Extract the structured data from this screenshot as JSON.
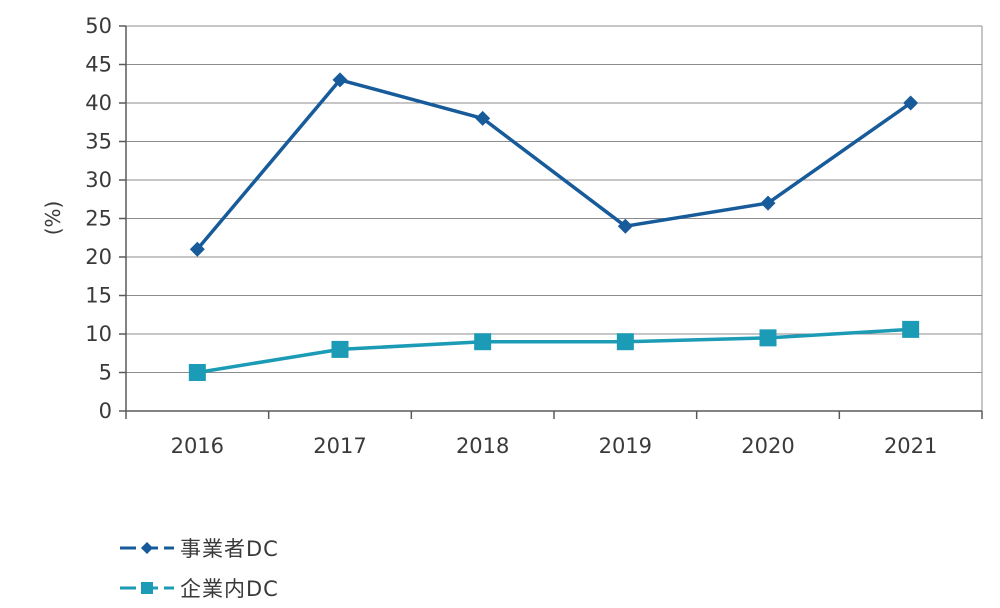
{
  "chart_data": {
    "type": "line",
    "categories": [
      "2016",
      "2017",
      "2018",
      "2019",
      "2020",
      "2021"
    ],
    "series": [
      {
        "name": "事業者DC",
        "values": [
          21,
          43,
          38,
          24,
          27,
          40
        ],
        "color": "#175b9a",
        "marker": "diamond"
      },
      {
        "name": "企業内DC",
        "values": [
          5,
          8,
          9,
          9,
          9.5,
          10.6
        ],
        "color": "#1b9bb5",
        "marker": "square"
      }
    ],
    "ylabel": "(%)",
    "ylim": [
      0,
      50
    ],
    "yticks": [
      0,
      5,
      10,
      15,
      20,
      25,
      30,
      35,
      40,
      45,
      50
    ],
    "grid": true,
    "legend_position": "bottom-left"
  }
}
